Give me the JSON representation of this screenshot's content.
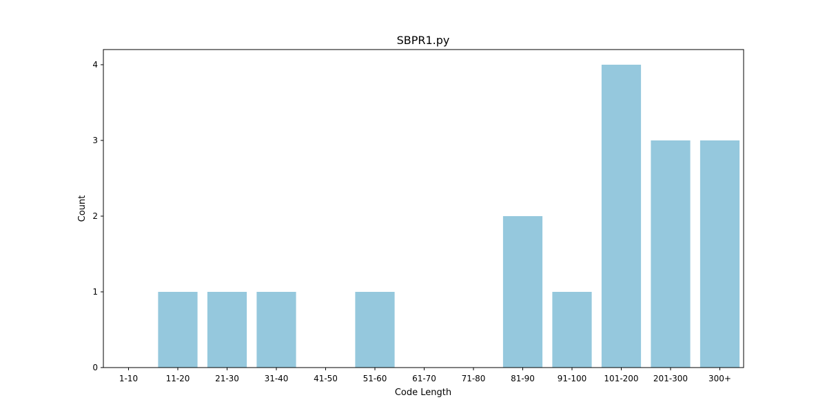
{
  "chart_data": {
    "type": "bar",
    "title": "SBPR1.py",
    "xlabel": "Code Length",
    "ylabel": "Count",
    "categories": [
      "1-10",
      "11-20",
      "21-30",
      "31-40",
      "41-50",
      "51-60",
      "61-70",
      "71-80",
      "81-90",
      "91-100",
      "101-200",
      "201-300",
      "300+"
    ],
    "values": [
      0,
      1,
      1,
      1,
      0,
      1,
      0,
      0,
      2,
      1,
      4,
      3,
      3
    ],
    "ylim": [
      0,
      4.2
    ],
    "yticks": [
      0,
      1,
      2,
      3,
      4
    ],
    "grid": false,
    "legend": "none",
    "bar_color": "#95c8dd"
  }
}
